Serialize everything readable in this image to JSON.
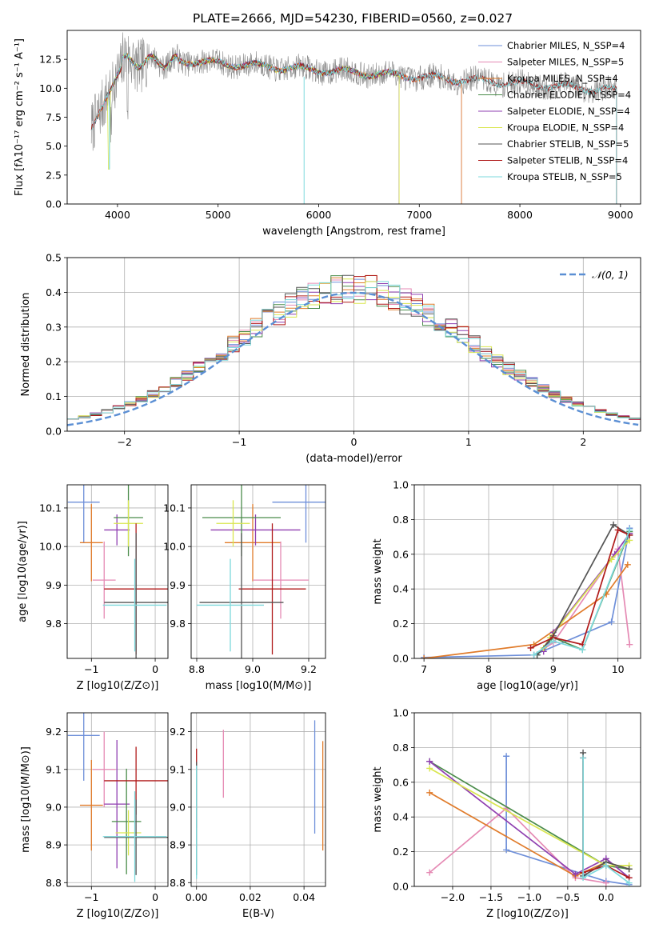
{
  "figure_title": "PLATE=2666, MJD=54230, FIBERID=0560, z=0.027",
  "chart_data": [
    {
      "id": "spectrum",
      "type": "line",
      "title": "PLATE=2666, MJD=54230, FIBERID=0560, z=0.027",
      "xlabel": "wavelength [Angstrom, rest frame]",
      "ylabel": "Flux [fλ10⁻¹⁷ erg cm⁻² s⁻¹ A⁻¹]",
      "xlim": [
        3500,
        9200
      ],
      "ylim": [
        0,
        15
      ],
      "xticks": [
        4000,
        5000,
        6000,
        7000,
        8000,
        9000
      ],
      "yticks": [
        0.0,
        2.5,
        5.0,
        7.5,
        10.0,
        12.5
      ],
      "grid": false,
      "legend": "top-right",
      "data_series": {
        "name": "",
        "x_range": [
          3740,
          8960
        ]
      },
      "series": [
        {
          "name": "Chabrier MILES, N_SSP=4",
          "color": "#6e8fd9",
          "x_range": [
            3740,
            7420
          ]
        },
        {
          "name": "Salpeter MILES, N_SSP=5",
          "color": "#e58ab4",
          "x_range": [
            3740,
            7420
          ]
        },
        {
          "name": "Kroupa MILES, N_SSP=4",
          "color": "#e07b2a",
          "x_range": [
            3740,
            7420
          ]
        },
        {
          "name": "Chabrier ELODIE, N_SSP=4",
          "color": "#4a8c4a",
          "x_range": [
            3900,
            6800
          ]
        },
        {
          "name": "Salpeter ELODIE, N_SSP=4",
          "color": "#8f3fb0",
          "x_range": [
            3900,
            6800
          ]
        },
        {
          "name": "Kroupa ELODIE, N_SSP=4",
          "color": "#d9e64f",
          "x_range": [
            3900,
            6800
          ]
        },
        {
          "name": "Chabrier STELIB, N_SSP=5",
          "color": "#555555",
          "x_range": [
            3740,
            8960
          ]
        },
        {
          "name": "Salpeter STELIB, N_SSP=4",
          "color": "#b01a1a",
          "x_range": [
            3740,
            8960
          ]
        },
        {
          "name": "Kroupa STELIB, N_SSP=5",
          "color": "#7dd9dc",
          "x_range": [
            3740,
            8960
          ]
        }
      ]
    },
    {
      "id": "residuals",
      "type": "histogram",
      "xlabel": "(data-model)/error",
      "ylabel": "Normed distribution",
      "xlim": [
        -2.5,
        2.5
      ],
      "ylim": [
        0,
        0.5
      ],
      "xticks": [
        -2,
        -1,
        0,
        1,
        2
      ],
      "yticks": [
        0.0,
        0.1,
        0.2,
        0.3,
        0.4,
        0.5
      ],
      "grid": true,
      "legend": "top-right",
      "reference": {
        "name": "𝒩(0, 1)",
        "mu": 0,
        "sigma": 1,
        "color": "#5b8fd4"
      },
      "bin_width": 0.1
    },
    {
      "id": "age_vs_Z",
      "type": "errorbar",
      "xlabel": "Z [log10(Z/Z⊙)]",
      "ylabel": "age  [log10(age/yr)]",
      "xlim": [
        -1.38,
        0.2
      ],
      "ylim": [
        9.71,
        10.16
      ],
      "xticks": [
        -1,
        0
      ],
      "yticks": [
        9.8,
        9.9,
        10.0,
        10.1
      ],
      "grid": true,
      "points": [
        {
          "color": "#6e8fd9",
          "x": -1.12,
          "xerr": 0.25,
          "y": 10.115,
          "yerr": 0.105
        },
        {
          "color": "#e07b2a",
          "x": -1.0,
          "xerr": 0.18,
          "y": 10.01,
          "yerr": 0.1
        },
        {
          "color": "#e58ab4",
          "x": -0.8,
          "xerr": 0.18,
          "y": 9.913,
          "yerr": 0.1
        },
        {
          "color": "#8f3fb0",
          "x": -0.6,
          "xerr": 0.2,
          "y": 10.043,
          "yerr": 0.04
        },
        {
          "color": "#4a8c4a",
          "x": -0.42,
          "xerr": 0.23,
          "y": 10.075,
          "yerr": 0.1
        },
        {
          "color": "#d9e64f",
          "x": -0.42,
          "xerr": 0.23,
          "y": 10.06,
          "yerr": 0.06
        },
        {
          "color": "#b01a1a",
          "x": -0.3,
          "xerr": 0.5,
          "y": 9.89,
          "yerr": 0.17
        },
        {
          "color": "#555555",
          "x": -0.3,
          "xerr": 0.5,
          "y": 9.855,
          "yerr": 0.18
        },
        {
          "color": "#7dd9dc",
          "x": -0.32,
          "xerr": 0.5,
          "y": 9.848,
          "yerr": 0.12
        }
      ]
    },
    {
      "id": "age_vs_mass",
      "type": "errorbar",
      "xlabel": "mass [log10(M/M⊙)]",
      "ylabel": "",
      "xlim": [
        8.78,
        9.26
      ],
      "ylim": [
        9.71,
        10.16
      ],
      "xticks": [
        8.8,
        9.0,
        9.2
      ],
      "yticks": [
        9.8,
        9.9,
        10.0,
        10.1
      ],
      "grid": true,
      "points": [
        {
          "color": "#6e8fd9",
          "x": 9.19,
          "xerr": 0.12,
          "y": 10.115,
          "yerr": 0.105
        },
        {
          "color": "#e07b2a",
          "x": 9.0,
          "xerr": 0.1,
          "y": 10.01,
          "yerr": 0.1
        },
        {
          "color": "#e58ab4",
          "x": 9.1,
          "xerr": 0.1,
          "y": 9.913,
          "yerr": 0.1
        },
        {
          "color": "#8f3fb0",
          "x": 9.01,
          "xerr": 0.16,
          "y": 10.043,
          "yerr": 0.04
        },
        {
          "color": "#4a8c4a",
          "x": 8.96,
          "xerr": 0.14,
          "y": 10.075,
          "yerr": 0.1
        },
        {
          "color": "#d9e64f",
          "x": 8.93,
          "xerr": 0.06,
          "y": 10.06,
          "yerr": 0.06
        },
        {
          "color": "#b01a1a",
          "x": 9.07,
          "xerr": 0.12,
          "y": 9.89,
          "yerr": 0.17
        },
        {
          "color": "#555555",
          "x": 8.96,
          "xerr": 0.15,
          "y": 9.855,
          "yerr": 0.18
        },
        {
          "color": "#7dd9dc",
          "x": 8.92,
          "xerr": 0.12,
          "y": 9.848,
          "yerr": 0.12
        }
      ]
    },
    {
      "id": "weight_vs_age",
      "type": "line",
      "xlabel": "age  [log10(age/yr)]",
      "ylabel": "mass weight",
      "xlim": [
        6.85,
        10.35
      ],
      "ylim": [
        0,
        1.0
      ],
      "xticks": [
        7,
        8,
        9,
        10
      ],
      "yticks": [
        0.0,
        0.2,
        0.4,
        0.6,
        0.8,
        1.0
      ],
      "grid": true,
      "series": [
        {
          "color": "#6e8fd9",
          "x": [
            7.0,
            8.7,
            9.9,
            10.18
          ],
          "y": [
            0.005,
            0.02,
            0.21,
            0.75
          ]
        },
        {
          "color": "#e58ab4",
          "x": [
            8.7,
            9.0,
            10.0,
            10.18
          ],
          "y": [
            0.02,
            0.09,
            0.63,
            0.08
          ]
        },
        {
          "color": "#e07b2a",
          "x": [
            7.0,
            8.7,
            9.82,
            10.15
          ],
          "y": [
            0.0,
            0.08,
            0.37,
            0.54
          ]
        },
        {
          "color": "#4a8c4a",
          "x": [
            8.75,
            9.0,
            9.45,
            10.18
          ],
          "y": [
            0.02,
            0.12,
            0.05,
            0.73
          ]
        },
        {
          "color": "#8f3fb0",
          "x": [
            8.85,
            9.0,
            9.95,
            10.18
          ],
          "y": [
            0.04,
            0.15,
            0.6,
            0.72
          ]
        },
        {
          "color": "#d9e64f",
          "x": [
            8.85,
            8.95,
            9.9,
            10.18
          ],
          "y": [
            0.06,
            0.12,
            0.57,
            0.68
          ]
        },
        {
          "color": "#555555",
          "x": [
            8.75,
            9.0,
            9.93,
            10.18
          ],
          "y": [
            0.02,
            0.13,
            0.77,
            0.71
          ]
        },
        {
          "color": "#b01a1a",
          "x": [
            8.65,
            9.0,
            9.45,
            10.0,
            10.18
          ],
          "y": [
            0.06,
            0.12,
            0.08,
            0.74,
            0.71
          ]
        },
        {
          "color": "#7dd9dc",
          "x": [
            8.7,
            9.0,
            9.45,
            10.18
          ],
          "y": [
            0.02,
            0.1,
            0.05,
            0.74
          ]
        }
      ]
    },
    {
      "id": "mass_vs_Z",
      "type": "errorbar",
      "xlabel": "Z [log10(Z/Z⊙)]",
      "ylabel": "mass [log10(M/M⊙)]",
      "xlim": [
        -1.38,
        0.2
      ],
      "ylim": [
        8.79,
        9.25
      ],
      "xticks": [
        -1,
        0
      ],
      "yticks": [
        8.8,
        8.9,
        9.0,
        9.1,
        9.2
      ],
      "grid": true,
      "points": [
        {
          "color": "#6e8fd9",
          "x": -1.12,
          "xerr": 0.25,
          "y": 9.19,
          "yerr": 0.12
        },
        {
          "color": "#e07b2a",
          "x": -1.0,
          "xerr": 0.18,
          "y": 9.005,
          "yerr": 0.12
        },
        {
          "color": "#e58ab4",
          "x": -0.8,
          "xerr": 0.18,
          "y": 9.1,
          "yerr": 0.1
        },
        {
          "color": "#8f3fb0",
          "x": -0.6,
          "xerr": 0.2,
          "y": 9.008,
          "yerr": 0.17
        },
        {
          "color": "#4a8c4a",
          "x": -0.45,
          "xerr": 0.23,
          "y": 8.962,
          "yerr": 0.14
        },
        {
          "color": "#d9e64f",
          "x": -0.42,
          "xerr": 0.2,
          "y": 8.932,
          "yerr": 0.06
        },
        {
          "color": "#b01a1a",
          "x": -0.3,
          "xerr": 0.5,
          "y": 9.07,
          "yerr": 0.09
        },
        {
          "color": "#555555",
          "x": -0.3,
          "xerr": 0.5,
          "y": 8.92,
          "yerr": 0.1
        },
        {
          "color": "#7dd9dc",
          "x": -0.32,
          "xerr": 0.5,
          "y": 8.922,
          "yerr": 0.12
        }
      ]
    },
    {
      "id": "mass_vs_ebv",
      "type": "errorbar",
      "xlabel": "E(B-V)",
      "ylabel": "",
      "xlim": [
        -0.002,
        0.048
      ],
      "ylim": [
        8.79,
        9.25
      ],
      "xticks": [
        0.0,
        0.02,
        0.04
      ],
      "yticks": [
        8.8,
        8.9,
        9.0,
        9.1,
        9.2
      ],
      "grid": true,
      "points": [
        {
          "color": "#6e8fd9",
          "x": 0.044,
          "xerr": 0,
          "y": 9.08,
          "yerr": 0.15
        },
        {
          "color": "#e07b2a",
          "x": 0.047,
          "xerr": 0,
          "y": 9.03,
          "yerr": 0.145
        },
        {
          "color": "#e58ab4",
          "x": 0.01,
          "xerr": 0,
          "y": 9.115,
          "yerr": 0.09
        },
        {
          "color": "#b01a1a",
          "x": 0.0,
          "xerr": 0,
          "y": 9.05,
          "yerr": 0.105
        },
        {
          "color": "#555555",
          "x": 0.0,
          "xerr": 0,
          "y": 8.97,
          "yerr": 0.15
        },
        {
          "color": "#7dd9dc",
          "x": 0.0,
          "xerr": 0,
          "y": 8.96,
          "yerr": 0.15
        }
      ]
    },
    {
      "id": "weight_vs_Z",
      "type": "line",
      "xlabel": "Z [log10(Z/Z⊙)]",
      "ylabel": "mass weight",
      "xlim": [
        -2.5,
        0.45
      ],
      "ylim": [
        0,
        1.0
      ],
      "xticks": [
        -2.0,
        -1.5,
        -1.0,
        -0.5,
        0.0
      ],
      "yticks": [
        0.0,
        0.2,
        0.4,
        0.6,
        0.8,
        1.0
      ],
      "grid": true,
      "series": [
        {
          "color": "#6e8fd9",
          "x": [
            -1.3,
            -1.3,
            0.0,
            0.3
          ],
          "y": [
            0.75,
            0.21,
            0.03,
            0.01
          ]
        },
        {
          "color": "#e58ab4",
          "x": [
            -2.3,
            -1.3,
            -0.4,
            0.0
          ],
          "y": [
            0.08,
            0.45,
            0.05,
            0.02
          ]
        },
        {
          "color": "#e07b2a",
          "x": [
            -2.3,
            -0.4,
            0.0,
            0.3
          ],
          "y": [
            0.54,
            0.06,
            0.14,
            0.1
          ]
        },
        {
          "color": "#4a8c4a",
          "x": [
            -2.3,
            0.0,
            0.3
          ],
          "y": [
            0.72,
            0.12,
            0.1
          ]
        },
        {
          "color": "#8f3fb0",
          "x": [
            -2.3,
            -0.4,
            0.0,
            0.3
          ],
          "y": [
            0.72,
            0.07,
            0.16,
            0.05
          ]
        },
        {
          "color": "#d9e64f",
          "x": [
            -2.3,
            0.0,
            0.3
          ],
          "y": [
            0.68,
            0.12,
            0.12
          ]
        },
        {
          "color": "#555555",
          "x": [
            -0.3,
            -0.3,
            0.0,
            0.3
          ],
          "y": [
            0.77,
            0.06,
            0.14,
            0.1
          ]
        },
        {
          "color": "#b01a1a",
          "x": [
            -0.3,
            -0.3,
            0.0,
            0.3
          ],
          "y": [
            0.74,
            0.08,
            0.12,
            0.05
          ]
        },
        {
          "color": "#7dd9dc",
          "x": [
            -0.3,
            -0.3,
            0.0,
            0.3
          ],
          "y": [
            0.74,
            0.05,
            0.12,
            0.02
          ]
        }
      ]
    }
  ]
}
